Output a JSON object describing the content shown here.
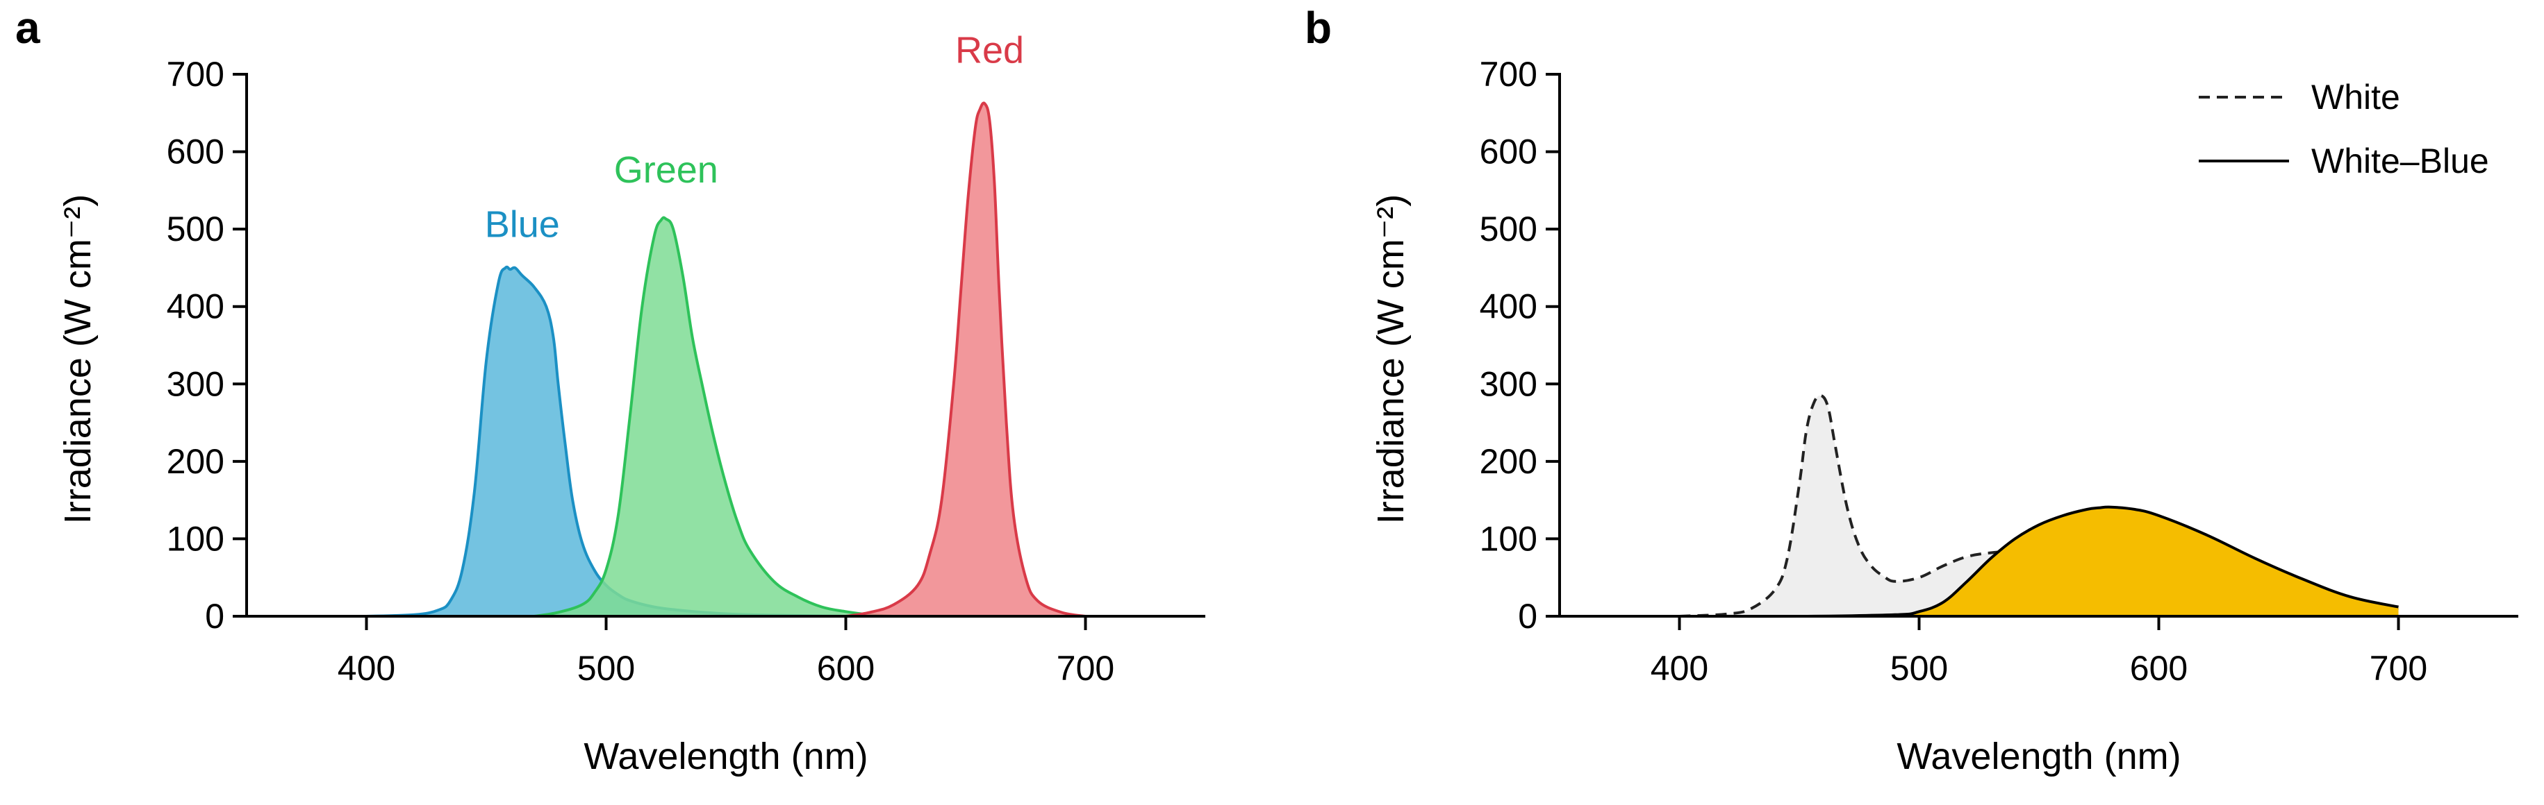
{
  "chart_data": [
    {
      "panel": "a",
      "type": "area",
      "xlabel": "Wavelength (nm)",
      "ylabel": "Irradiance (W cm⁻²)",
      "xlim": [
        350,
        750
      ],
      "ylim": [
        0,
        700
      ],
      "xticks": [
        400,
        500,
        600,
        700
      ],
      "yticks": [
        0,
        100,
        200,
        300,
        400,
        500,
        600,
        700
      ],
      "series": [
        {
          "name": "Blue",
          "color": "#1b90c4",
          "fill": "#5cb8dc",
          "peak_label_at": [
            465,
            490
          ],
          "x": [
            400,
            420,
            430,
            435,
            440,
            445,
            450,
            455,
            458,
            460,
            462,
            465,
            470,
            475,
            478,
            480,
            483,
            486,
            490,
            495,
            500,
            505,
            510,
            520,
            530,
            545,
            560,
            580,
            600
          ],
          "y": [
            0,
            2,
            8,
            20,
            60,
            160,
            330,
            430,
            450,
            448,
            450,
            440,
            425,
            400,
            360,
            300,
            220,
            150,
            95,
            60,
            40,
            28,
            20,
            12,
            8,
            4,
            2,
            1,
            0
          ]
        },
        {
          "name": "Green",
          "color": "#2ec25a",
          "fill": "#7edc94",
          "peak_label_at": [
            525,
            560
          ],
          "x": [
            470,
            480,
            490,
            495,
            500,
            505,
            510,
            515,
            520,
            523,
            525,
            528,
            532,
            536,
            540,
            545,
            550,
            555,
            560,
            570,
            580,
            590,
            600,
            610,
            620
          ],
          "y": [
            0,
            5,
            15,
            30,
            60,
            130,
            260,
            400,
            490,
            512,
            513,
            500,
            440,
            360,
            300,
            230,
            170,
            120,
            85,
            45,
            25,
            12,
            6,
            2,
            0
          ]
        },
        {
          "name": "Red",
          "color": "#d93a48",
          "fill": "#f0858a",
          "peak_label_at": [
            660,
            715
          ],
          "x": [
            600,
            610,
            620,
            630,
            635,
            640,
            645,
            648,
            651,
            654,
            656,
            658,
            660,
            662,
            664,
            667,
            670,
            675,
            680,
            690,
            700
          ],
          "y": [
            0,
            5,
            15,
            40,
            80,
            150,
            300,
            420,
            540,
            630,
            655,
            662,
            640,
            560,
            420,
            250,
            130,
            50,
            20,
            5,
            0
          ]
        }
      ],
      "labels": {
        "blue": "Blue",
        "green": "Green",
        "red": "Red"
      }
    },
    {
      "panel": "b",
      "type": "area",
      "xlabel": "Wavelength (nm)",
      "ylabel": "Irradiance (W cm⁻²)",
      "xlim": [
        350,
        750
      ],
      "ylim": [
        0,
        700
      ],
      "xticks": [
        400,
        500,
        600,
        700
      ],
      "yticks": [
        0,
        100,
        200,
        300,
        400,
        500,
        600,
        700
      ],
      "legend_position": "top-right",
      "series": [
        {
          "name": "White",
          "style": "dashed",
          "color": "#222222",
          "fill": "#eeeeee",
          "x": [
            400,
            420,
            430,
            440,
            445,
            450,
            453,
            456,
            459,
            462,
            465,
            470,
            475,
            480,
            485,
            490,
            500,
            510,
            520,
            530,
            540,
            550,
            560,
            570,
            580,
            590,
            600,
            620,
            640,
            660,
            680,
            700
          ],
          "y": [
            0,
            3,
            10,
            35,
            75,
            170,
            240,
            275,
            285,
            270,
            220,
            140,
            90,
            65,
            52,
            45,
            50,
            65,
            77,
            82,
            84,
            84,
            83,
            81,
            78,
            74,
            68,
            55,
            40,
            27,
            15,
            8
          ]
        },
        {
          "name": "White–Blue",
          "style": "solid",
          "color": "#000000",
          "fill": "#f5bd00",
          "x": [
            400,
            450,
            490,
            500,
            510,
            520,
            530,
            540,
            550,
            560,
            570,
            575,
            580,
            590,
            600,
            620,
            640,
            660,
            680,
            700
          ],
          "y": [
            0,
            0,
            2,
            6,
            18,
            45,
            75,
            100,
            118,
            130,
            138,
            140,
            141,
            138,
            130,
            105,
            75,
            48,
            25,
            12
          ]
        }
      ],
      "legend": [
        "White",
        "White–Blue"
      ]
    }
  ],
  "panels": {
    "a_letter": "a",
    "b_letter": "b"
  }
}
